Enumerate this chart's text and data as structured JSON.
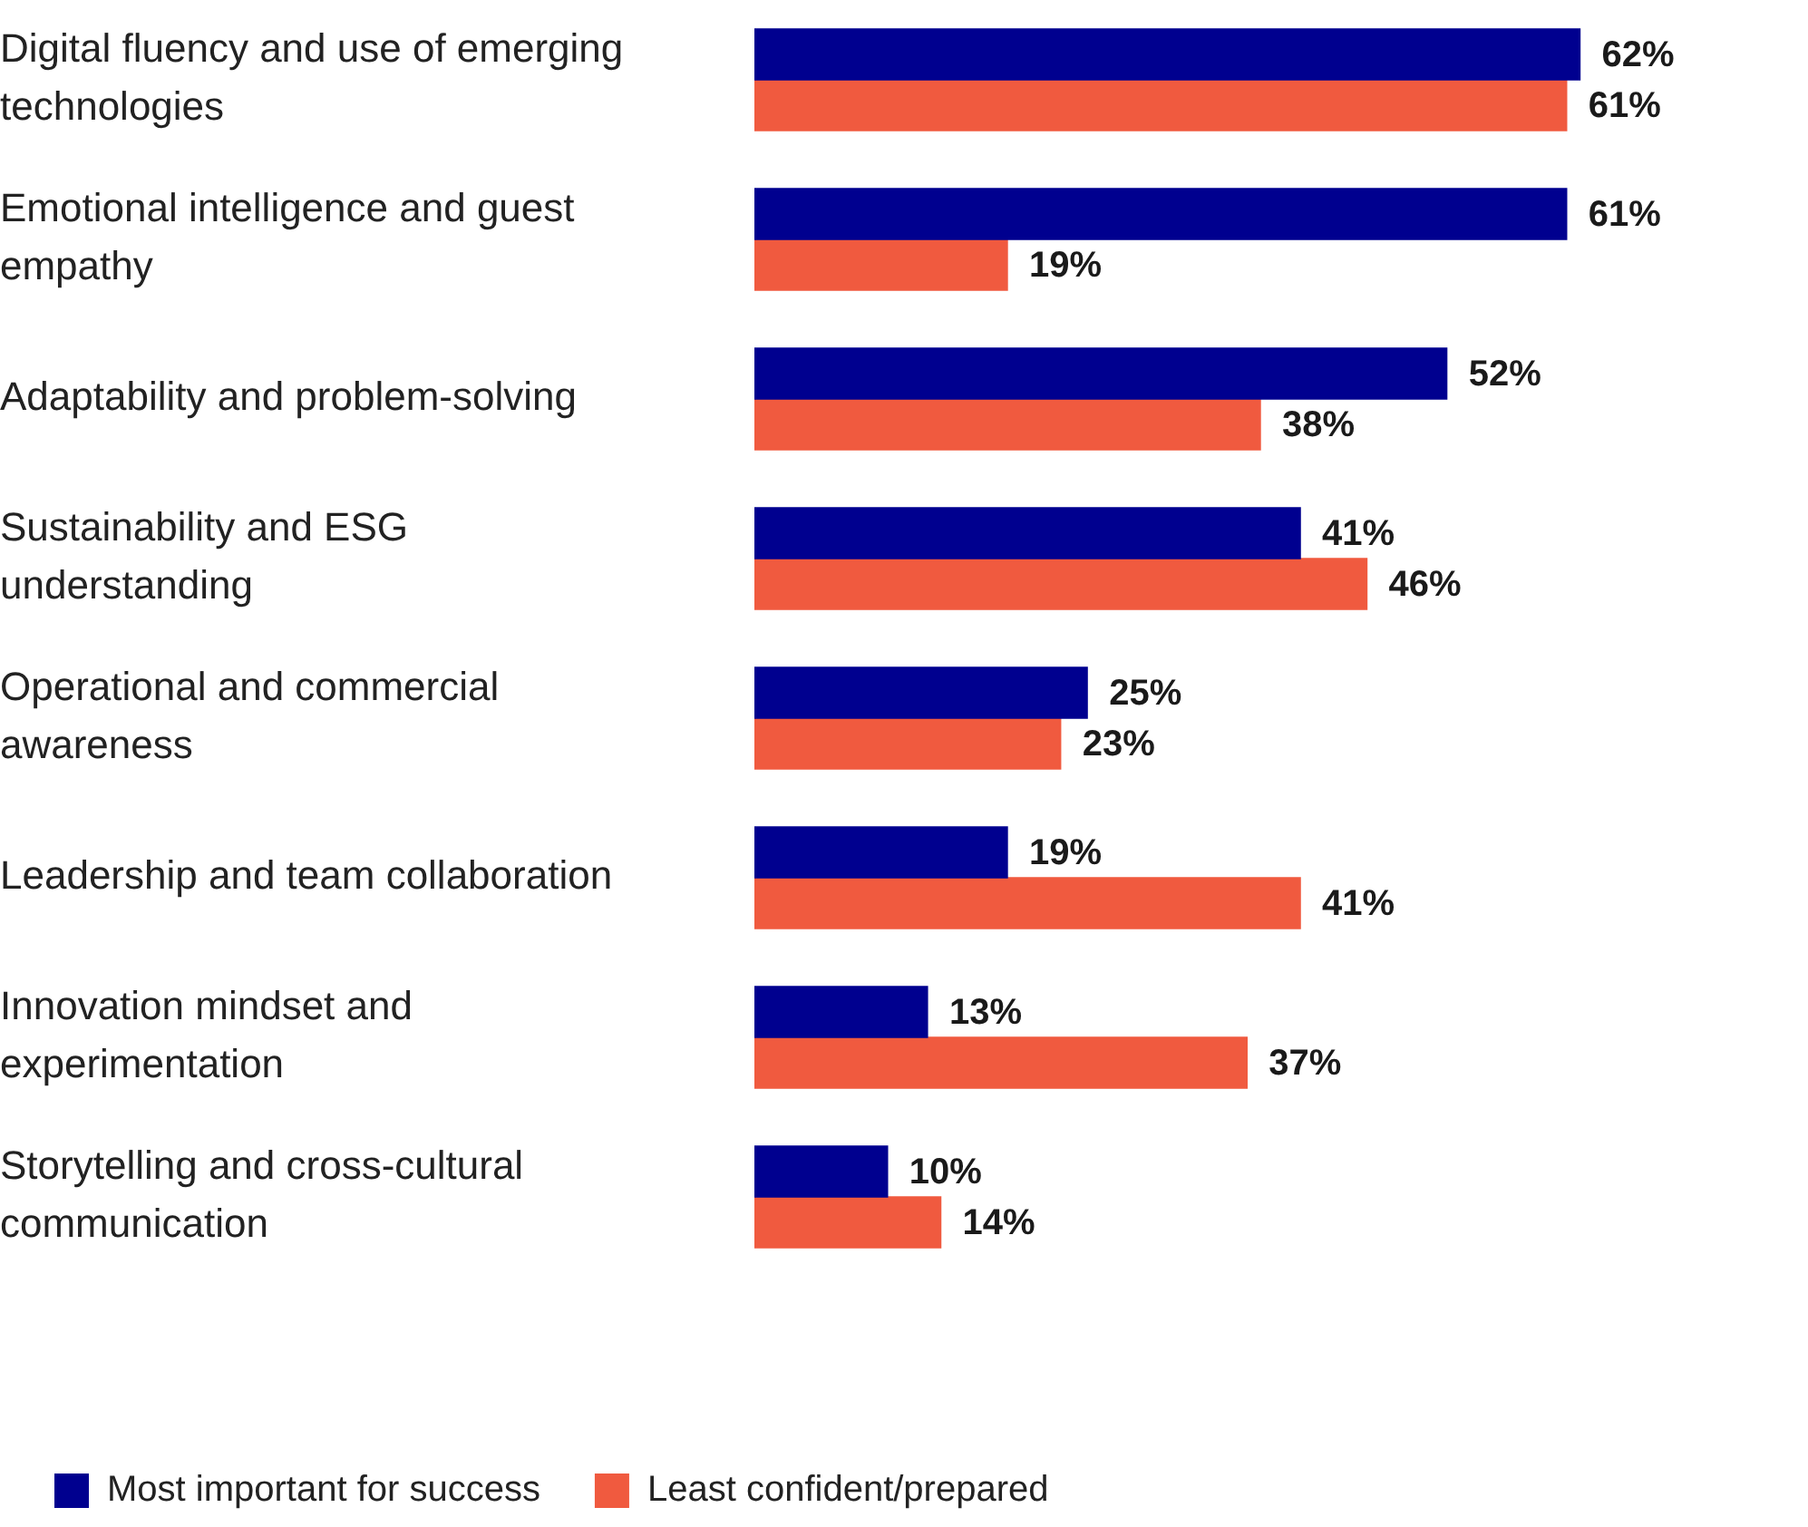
{
  "chart_data": {
    "type": "bar",
    "orientation": "horizontal",
    "legend": "bottom left",
    "categories": [
      "Digital fluency and use of emerging technologies",
      "Emotional intelligence and guest empathy",
      "Adaptability and problem-solving",
      "Sustainability and ESG understanding",
      "Operational and commercial awareness",
      "Leadership and team collaboration",
      "Innovation mindset and experimentation",
      "Storytelling and cross-cultural communication"
    ],
    "series": [
      {
        "name": "Most important for success",
        "color": "#00008f",
        "values": [
          62,
          61,
          52,
          41,
          25,
          19,
          13,
          10
        ],
        "value_labels": [
          "62%",
          "61%",
          "52%",
          "41%",
          "25%",
          "19%",
          "13%",
          "10%"
        ]
      },
      {
        "name": "Least confident/prepared",
        "color": "#f05a3f",
        "values": [
          61,
          19,
          38,
          46,
          23,
          41,
          37,
          14
        ],
        "value_labels": [
          "61%",
          "19%",
          "38%",
          "46%",
          "23%",
          "41%",
          "37%",
          "14%"
        ]
      }
    ]
  }
}
